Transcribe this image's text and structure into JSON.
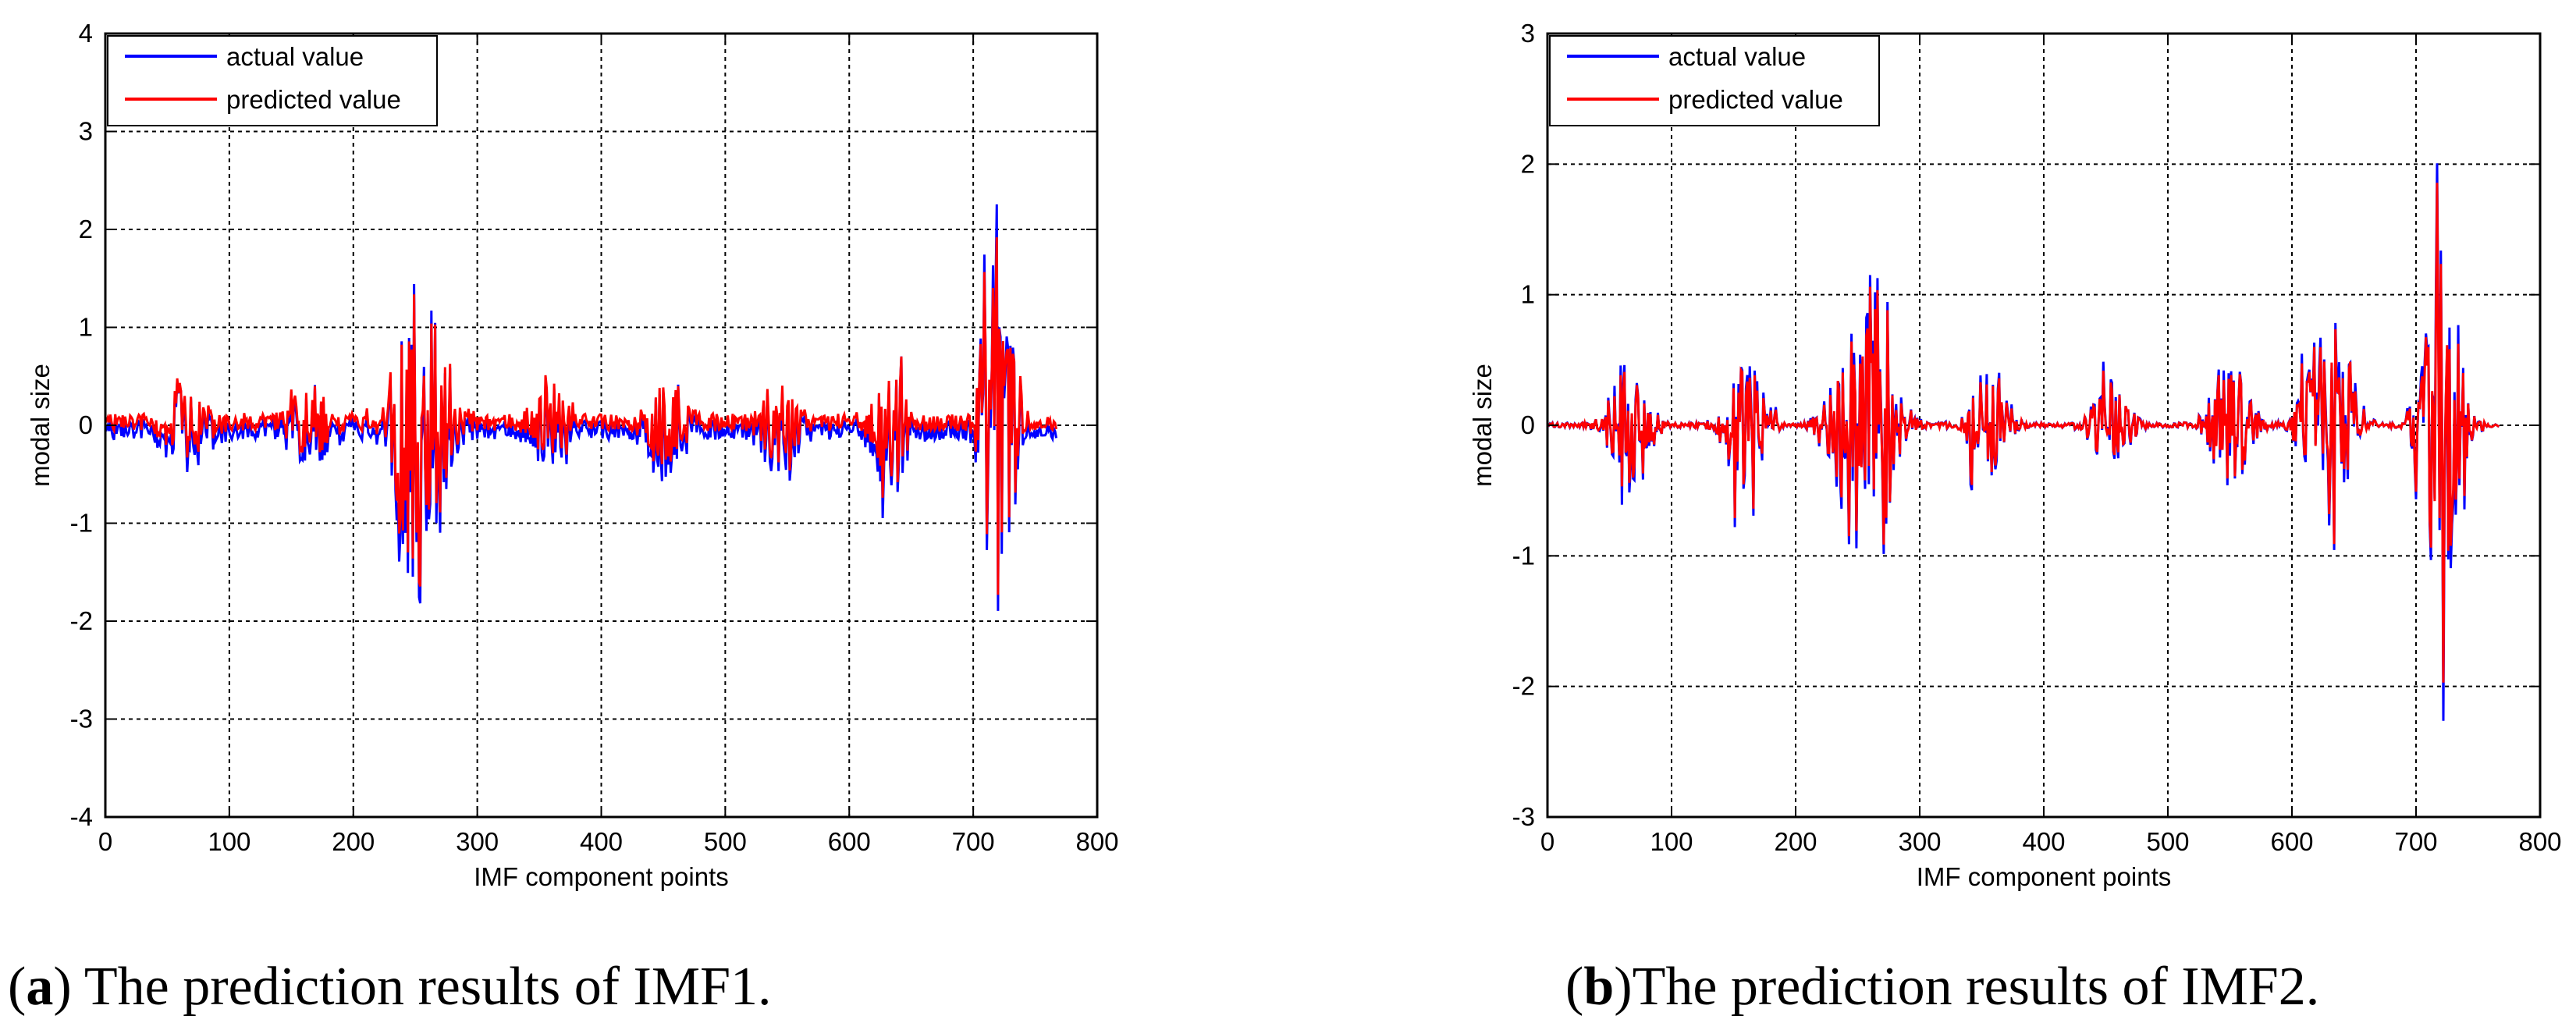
{
  "chart_data": [
    {
      "type": "line",
      "panel_label": "a",
      "caption": "The prediction results of IMF1.",
      "xlabel": "IMF component points",
      "ylabel": "modal size",
      "xlim": [
        0,
        800
      ],
      "ylim": [
        -4,
        4
      ],
      "xticks": [
        0,
        100,
        200,
        300,
        400,
        500,
        600,
        700,
        800
      ],
      "yticks": [
        -4,
        -3,
        -2,
        -1,
        0,
        1,
        2,
        3,
        4
      ],
      "grid": true,
      "legend_position": "top-left",
      "n_points": 768,
      "series": [
        {
          "name": "actual value",
          "color": "#0000ff",
          "baseline_offset": -0.05
        },
        {
          "name": "predicted value",
          "color": "#ff0000",
          "baseline_offset": 0.03
        }
      ],
      "bursts": [
        {
          "center": 65,
          "width": 22,
          "amp": 1.0
        },
        {
          "center": 165,
          "width": 20,
          "amp": 1.05
        },
        {
          "center": 252,
          "width": 28,
          "amp": 3.1
        },
        {
          "center": 358,
          "width": 22,
          "amp": 0.95
        },
        {
          "center": 453,
          "width": 22,
          "amp": 1.05
        },
        {
          "center": 545,
          "width": 20,
          "amp": 1.0
        },
        {
          "center": 633,
          "width": 20,
          "amp": 1.15
        },
        {
          "center": 720,
          "width": 18,
          "amp": 3.55
        }
      ],
      "floor_noise": 0.1
    },
    {
      "type": "line",
      "panel_label": "b",
      "caption": "The prediction results of IMF2.",
      "xlabel": "IMF component points",
      "ylabel": "modal size",
      "xlim": [
        0,
        800
      ],
      "ylim": [
        -3,
        3
      ],
      "xticks": [
        0,
        100,
        200,
        300,
        400,
        500,
        600,
        700,
        800
      ],
      "yticks": [
        -3,
        -2,
        -1,
        0,
        1,
        2,
        3
      ],
      "grid": true,
      "legend_position": "top-left",
      "n_points": 768,
      "series": [
        {
          "name": "actual value",
          "color": "#0000ff",
          "baseline_offset": 0
        },
        {
          "name": "predicted value",
          "color": "#ff0000",
          "baseline_offset": 0
        }
      ],
      "bursts": [
        {
          "center": 65,
          "width": 22,
          "amp": 1.0
        },
        {
          "center": 160,
          "width": 22,
          "amp": 0.95
        },
        {
          "center": 255,
          "width": 30,
          "amp": 2.3
        },
        {
          "center": 355,
          "width": 22,
          "amp": 0.9
        },
        {
          "center": 455,
          "width": 22,
          "amp": 0.65
        },
        {
          "center": 550,
          "width": 22,
          "amp": 0.95
        },
        {
          "center": 630,
          "width": 26,
          "amp": 1.8
        },
        {
          "center": 720,
          "width": 22,
          "amp": 2.5
        }
      ],
      "floor_noise": 0.02
    }
  ]
}
